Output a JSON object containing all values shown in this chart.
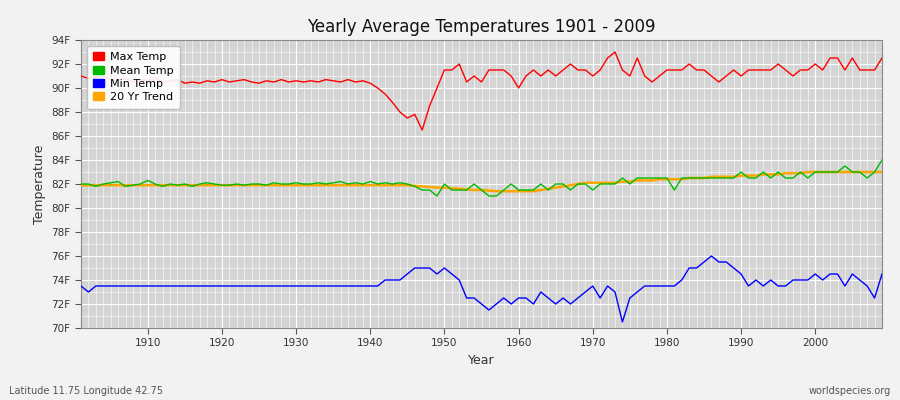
{
  "title": "Yearly Average Temperatures 1901 - 2009",
  "xlabel": "Year",
  "ylabel": "Temperature",
  "subtitle_left": "Latitude 11.75 Longitude 42.75",
  "subtitle_right": "worldspecies.org",
  "years_start": 1901,
  "years_end": 2009,
  "yticks": [
    "70F",
    "72F",
    "74F",
    "76F",
    "78F",
    "80F",
    "82F",
    "84F",
    "86F",
    "88F",
    "90F",
    "92F",
    "94F"
  ],
  "ytick_values": [
    70,
    72,
    74,
    76,
    78,
    80,
    82,
    84,
    86,
    88,
    90,
    92,
    94
  ],
  "ylim": [
    70,
    94
  ],
  "xlim": [
    1901,
    2009
  ],
  "fig_bg_color": "#f0f0f0",
  "plot_bg_color": "#d8d8d8",
  "grid_color": "#ffffff",
  "max_color": "#ff0000",
  "mean_color": "#00bb00",
  "min_color": "#0000ff",
  "trend_color": "#ffa500",
  "legend_labels": [
    "Max Temp",
    "Mean Temp",
    "Min Temp",
    "20 Yr Trend"
  ],
  "max_temp_data": [
    91.0,
    90.8,
    90.9,
    91.0,
    90.7,
    90.6,
    90.8,
    90.5,
    90.7,
    90.6,
    90.8,
    90.5,
    90.6,
    90.7,
    90.4,
    90.5,
    90.4,
    90.6,
    90.5,
    90.7,
    90.5,
    90.6,
    90.7,
    90.5,
    90.4,
    90.6,
    90.5,
    90.7,
    90.5,
    90.6,
    90.5,
    90.6,
    90.5,
    90.7,
    90.6,
    90.5,
    90.7,
    90.5,
    90.6,
    90.4,
    90.0,
    89.5,
    88.8,
    88.0,
    87.5,
    87.8,
    86.5,
    88.5,
    90.0,
    91.5,
    91.5,
    92.0,
    90.5,
    91.0,
    90.5,
    91.5,
    91.5,
    91.5,
    91.0,
    90.0,
    91.0,
    91.5,
    91.0,
    91.5,
    91.0,
    91.5,
    92.0,
    91.5,
    91.5,
    91.0,
    91.5,
    92.5,
    93.0,
    91.5,
    91.0,
    92.5,
    91.0,
    90.5,
    91.0,
    91.5,
    91.5,
    91.5,
    92.0,
    91.5,
    91.5,
    91.0,
    90.5,
    91.0,
    91.5,
    91.0,
    91.5,
    91.5,
    91.5,
    91.5,
    92.0,
    91.5,
    91.0,
    91.5,
    91.5,
    92.0,
    91.5,
    92.5,
    92.5,
    91.5,
    92.5,
    91.5,
    91.5,
    91.5,
    92.5
  ],
  "mean_temp_data": [
    82.0,
    82.0,
    81.8,
    82.0,
    82.1,
    82.2,
    81.8,
    81.9,
    82.0,
    82.3,
    82.0,
    81.8,
    82.0,
    81.9,
    82.0,
    81.8,
    82.0,
    82.1,
    82.0,
    81.9,
    81.9,
    82.0,
    81.9,
    82.0,
    82.0,
    81.9,
    82.1,
    82.0,
    82.0,
    82.1,
    82.0,
    82.0,
    82.1,
    82.0,
    82.1,
    82.2,
    82.0,
    82.1,
    82.0,
    82.2,
    82.0,
    82.1,
    82.0,
    82.1,
    82.0,
    81.8,
    81.5,
    81.5,
    81.0,
    82.0,
    81.5,
    81.5,
    81.5,
    82.0,
    81.5,
    81.0,
    81.0,
    81.5,
    82.0,
    81.5,
    81.5,
    81.5,
    82.0,
    81.5,
    82.0,
    82.0,
    81.5,
    82.0,
    82.0,
    81.5,
    82.0,
    82.0,
    82.0,
    82.5,
    82.0,
    82.5,
    82.5,
    82.5,
    82.5,
    82.5,
    81.5,
    82.5,
    82.5,
    82.5,
    82.5,
    82.5,
    82.5,
    82.5,
    82.5,
    83.0,
    82.5,
    82.5,
    83.0,
    82.5,
    83.0,
    82.5,
    82.5,
    83.0,
    82.5,
    83.0,
    83.0,
    83.0,
    83.0,
    83.5,
    83.0,
    83.0,
    82.5,
    83.0,
    84.0
  ],
  "min_temp_data": [
    73.5,
    73.0,
    73.5,
    73.5,
    73.5,
    73.5,
    73.5,
    73.5,
    73.5,
    73.5,
    73.5,
    73.5,
    73.5,
    73.5,
    73.5,
    73.5,
    73.5,
    73.5,
    73.5,
    73.5,
    73.5,
    73.5,
    73.5,
    73.5,
    73.5,
    73.5,
    73.5,
    73.5,
    73.5,
    73.5,
    73.5,
    73.5,
    73.5,
    73.5,
    73.5,
    73.5,
    73.5,
    73.5,
    73.5,
    73.5,
    73.5,
    74.0,
    74.0,
    74.0,
    74.5,
    75.0,
    75.0,
    75.0,
    74.5,
    75.0,
    74.5,
    74.0,
    72.5,
    72.5,
    72.0,
    71.5,
    72.0,
    72.5,
    72.0,
    72.5,
    72.5,
    72.0,
    73.0,
    72.5,
    72.0,
    72.5,
    72.0,
    72.5,
    73.0,
    73.5,
    72.5,
    73.5,
    73.0,
    70.5,
    72.5,
    73.0,
    73.5,
    73.5,
    73.5,
    73.5,
    73.5,
    74.0,
    75.0,
    75.0,
    75.5,
    76.0,
    75.5,
    75.5,
    75.0,
    74.5,
    73.5,
    74.0,
    73.5,
    74.0,
    73.5,
    73.5,
    74.0,
    74.0,
    74.0,
    74.5,
    74.0,
    74.5,
    74.5,
    73.5,
    74.5,
    74.0,
    73.5,
    72.5,
    74.5
  ],
  "trend_data": [
    81.9,
    81.9,
    81.9,
    81.9,
    81.9,
    81.9,
    81.9,
    81.9,
    81.9,
    81.9,
    81.9,
    81.9,
    81.9,
    81.9,
    81.9,
    81.9,
    81.9,
    81.9,
    81.9,
    81.9,
    81.9,
    81.9,
    81.9,
    81.9,
    81.9,
    81.9,
    81.9,
    81.9,
    81.9,
    81.9,
    81.9,
    81.9,
    81.9,
    81.9,
    81.9,
    81.9,
    81.9,
    81.9,
    81.9,
    81.9,
    81.9,
    81.9,
    81.9,
    81.9,
    81.9,
    81.85,
    81.8,
    81.75,
    81.7,
    81.7,
    81.65,
    81.6,
    81.55,
    81.5,
    81.5,
    81.45,
    81.4,
    81.4,
    81.4,
    81.4,
    81.4,
    81.4,
    81.5,
    81.6,
    81.7,
    81.8,
    81.9,
    82.0,
    82.1,
    82.1,
    82.1,
    82.1,
    82.1,
    82.2,
    82.2,
    82.3,
    82.3,
    82.3,
    82.4,
    82.4,
    82.4,
    82.4,
    82.5,
    82.5,
    82.5,
    82.6,
    82.6,
    82.6,
    82.6,
    82.7,
    82.7,
    82.7,
    82.8,
    82.8,
    82.8,
    82.9,
    82.9,
    82.9,
    83.0,
    83.0,
    83.0,
    83.0,
    83.0,
    83.0,
    83.0,
    83.0,
    83.0,
    83.0,
    83.0
  ]
}
